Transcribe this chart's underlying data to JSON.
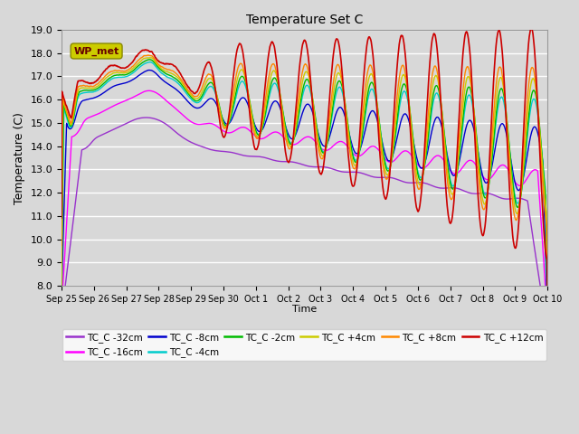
{
  "title": "Temperature Set C",
  "xlabel": "Time",
  "ylabel": "Temperature (C)",
  "ylim": [
    8.0,
    19.0
  ],
  "yticks": [
    8.0,
    9.0,
    10.0,
    11.0,
    12.0,
    13.0,
    14.0,
    15.0,
    16.0,
    17.0,
    18.0,
    19.0
  ],
  "background_color": "#d8d8d8",
  "plot_bg_color": "#d8d8d8",
  "grid_color": "#ffffff",
  "series": [
    {
      "label": "TC_C -32cm",
      "color": "#9932cc",
      "lw": 1.0
    },
    {
      "label": "TC_C -16cm",
      "color": "#ff00ff",
      "lw": 1.0
    },
    {
      "label": "TC_C -8cm",
      "color": "#0000cd",
      "lw": 1.0
    },
    {
      "label": "TC_C -4cm",
      "color": "#00cccc",
      "lw": 1.0
    },
    {
      "label": "TC_C -2cm",
      "color": "#00bb00",
      "lw": 1.0
    },
    {
      "label": "TC_C +4cm",
      "color": "#cccc00",
      "lw": 1.0
    },
    {
      "label": "TC_C +8cm",
      "color": "#ff8800",
      "lw": 1.0
    },
    {
      "label": "TC_C +12cm",
      "color": "#cc0000",
      "lw": 1.2
    }
  ],
  "xtick_labels": [
    "Sep 25",
    "Sep 26",
    "Sep 27",
    "Sep 28",
    "Sep 29",
    "Sep 30",
    "Oct 1",
    "Oct 2",
    "Oct 3",
    "Oct 4",
    "Oct 5",
    "Oct 6",
    "Oct 7",
    "Oct 8",
    "Oct 9",
    "Oct 10"
  ],
  "wp_met_box_color": "#cccc00",
  "wp_met_text_color": "#660000"
}
